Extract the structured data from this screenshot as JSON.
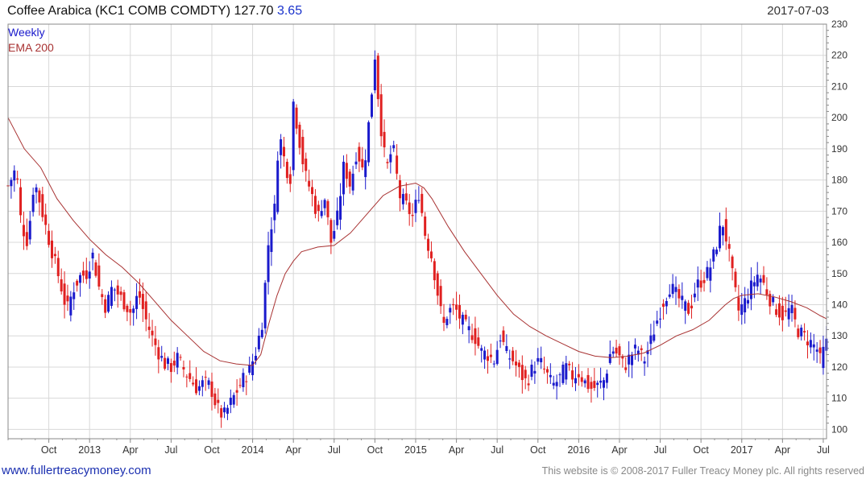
{
  "header": {
    "title": "Coffee Arabica  (KC1 COMB COMDTY) 127.70",
    "change": "3.65",
    "date": "2017-07-03"
  },
  "legend": {
    "weekly": "Weekly",
    "ema": "EMA 200"
  },
  "footer": {
    "site": "www.fullertreacymoney.com",
    "copyright": "This website is © 2008-2017 Fuller Treacy Money plc. All rights reserved"
  },
  "colors": {
    "up": "#1a1acc",
    "down": "#e02020",
    "ema": "#a83232",
    "grid": "#d8d8d8"
  },
  "chart_data": {
    "type": "candlestick",
    "y_ticks": [
      100,
      110,
      120,
      130,
      140,
      150,
      160,
      170,
      180,
      190,
      200,
      210,
      220,
      230
    ],
    "ylim": [
      97,
      230
    ],
    "x_ticks": [
      {
        "label": "Oct",
        "t": 2012.75
      },
      {
        "label": "2013",
        "t": 2013.0
      },
      {
        "label": "Apr",
        "t": 2013.25
      },
      {
        "label": "Jul",
        "t": 2013.5
      },
      {
        "label": "Oct",
        "t": 2013.75
      },
      {
        "label": "2014",
        "t": 2014.0
      },
      {
        "label": "Apr",
        "t": 2014.25
      },
      {
        "label": "Jul",
        "t": 2014.5
      },
      {
        "label": "Oct",
        "t": 2014.75
      },
      {
        "label": "2015",
        "t": 2015.0
      },
      {
        "label": "Apr",
        "t": 2015.25
      },
      {
        "label": "Jul",
        "t": 2015.5
      },
      {
        "label": "Oct",
        "t": 2015.75
      },
      {
        "label": "2016",
        "t": 2016.0
      },
      {
        "label": "Apr",
        "t": 2016.25
      },
      {
        "label": "Jul",
        "t": 2016.5
      },
      {
        "label": "Oct",
        "t": 2016.75
      },
      {
        "label": "2017",
        "t": 2017.0
      },
      {
        "label": "Apr",
        "t": 2017.25
      },
      {
        "label": "Jul",
        "t": 2017.5
      }
    ],
    "xlim": [
      2012.5,
      2017.52
    ],
    "close_path": [
      [
        2012.5,
        178
      ],
      [
        2012.55,
        184
      ],
      [
        2012.58,
        166
      ],
      [
        2012.62,
        160
      ],
      [
        2012.66,
        180
      ],
      [
        2012.7,
        172
      ],
      [
        2012.74,
        163
      ],
      [
        2012.78,
        155
      ],
      [
        2012.82,
        147
      ],
      [
        2012.86,
        138
      ],
      [
        2012.9,
        145
      ],
      [
        2012.94,
        149
      ],
      [
        2012.98,
        150
      ],
      [
        2013.02,
        156
      ],
      [
        2013.06,
        145
      ],
      [
        2013.1,
        139
      ],
      [
        2013.14,
        146
      ],
      [
        2013.18,
        143
      ],
      [
        2013.22,
        140
      ],
      [
        2013.26,
        137
      ],
      [
        2013.3,
        144
      ],
      [
        2013.34,
        136
      ],
      [
        2013.38,
        130
      ],
      [
        2013.42,
        125
      ],
      [
        2013.46,
        121
      ],
      [
        2013.5,
        120
      ],
      [
        2013.54,
        123
      ],
      [
        2013.58,
        119
      ],
      [
        2013.62,
        116
      ],
      [
        2013.66,
        113
      ],
      [
        2013.7,
        115
      ],
      [
        2013.74,
        114
      ],
      [
        2013.78,
        107
      ],
      [
        2013.82,
        104
      ],
      [
        2013.86,
        108
      ],
      [
        2013.9,
        112
      ],
      [
        2013.94,
        116
      ],
      [
        2013.98,
        119
      ],
      [
        2014.02,
        125
      ],
      [
        2014.06,
        135
      ],
      [
        2014.1,
        162
      ],
      [
        2014.14,
        172
      ],
      [
        2014.16,
        196
      ],
      [
        2014.2,
        185
      ],
      [
        2014.23,
        180
      ],
      [
        2014.25,
        205
      ],
      [
        2014.28,
        195
      ],
      [
        2014.32,
        182
      ],
      [
        2014.36,
        176
      ],
      [
        2014.4,
        168
      ],
      [
        2014.44,
        175
      ],
      [
        2014.48,
        160
      ],
      [
        2014.52,
        168
      ],
      [
        2014.56,
        185
      ],
      [
        2014.6,
        178
      ],
      [
        2014.64,
        190
      ],
      [
        2014.68,
        182
      ],
      [
        2014.72,
        202
      ],
      [
        2014.75,
        220
      ],
      [
        2014.78,
        200
      ],
      [
        2014.82,
        183
      ],
      [
        2014.86,
        191
      ],
      [
        2014.9,
        175
      ],
      [
        2014.94,
        172
      ],
      [
        2014.98,
        168
      ],
      [
        2015.02,
        176
      ],
      [
        2015.06,
        162
      ],
      [
        2015.1,
        155
      ],
      [
        2015.14,
        142
      ],
      [
        2015.17,
        133
      ],
      [
        2015.2,
        138
      ],
      [
        2015.24,
        139
      ],
      [
        2015.28,
        135
      ],
      [
        2015.32,
        132
      ],
      [
        2015.36,
        130
      ],
      [
        2015.4,
        125
      ],
      [
        2015.44,
        124
      ],
      [
        2015.48,
        122
      ],
      [
        2015.52,
        130
      ],
      [
        2015.56,
        124
      ],
      [
        2015.6,
        122
      ],
      [
        2015.64,
        118
      ],
      [
        2015.68,
        115
      ],
      [
        2015.72,
        120
      ],
      [
        2015.76,
        122
      ],
      [
        2015.8,
        118
      ],
      [
        2015.84,
        114
      ],
      [
        2015.88,
        116
      ],
      [
        2015.92,
        120
      ],
      [
        2015.96,
        117
      ],
      [
        2016.0,
        118
      ],
      [
        2016.04,
        115
      ],
      [
        2016.08,
        113
      ],
      [
        2016.12,
        114
      ],
      [
        2016.16,
        116
      ],
      [
        2016.2,
        126
      ],
      [
        2016.24,
        124
      ],
      [
        2016.28,
        120
      ],
      [
        2016.32,
        124
      ],
      [
        2016.36,
        126
      ],
      [
        2016.4,
        122
      ],
      [
        2016.44,
        128
      ],
      [
        2016.48,
        135
      ],
      [
        2016.52,
        141
      ],
      [
        2016.56,
        146
      ],
      [
        2016.6,
        143
      ],
      [
        2016.64,
        140
      ],
      [
        2016.68,
        138
      ],
      [
        2016.72,
        146
      ],
      [
        2016.76,
        148
      ],
      [
        2016.8,
        151
      ],
      [
        2016.84,
        158
      ],
      [
        2016.88,
        167
      ],
      [
        2016.91,
        160
      ],
      [
        2016.94,
        150
      ],
      [
        2016.98,
        138
      ],
      [
        2017.02,
        141
      ],
      [
        2017.06,
        146
      ],
      [
        2017.1,
        150
      ],
      [
        2017.14,
        146
      ],
      [
        2017.18,
        141
      ],
      [
        2017.22,
        138
      ],
      [
        2017.26,
        136
      ],
      [
        2017.3,
        139
      ],
      [
        2017.34,
        132
      ],
      [
        2017.38,
        130
      ],
      [
        2017.42,
        128
      ],
      [
        2017.46,
        126
      ],
      [
        2017.48,
        122
      ],
      [
        2017.5,
        125
      ],
      [
        2017.52,
        127.7
      ]
    ],
    "ema_200": [
      [
        2012.5,
        200
      ],
      [
        2012.6,
        190
      ],
      [
        2012.7,
        184
      ],
      [
        2012.8,
        174
      ],
      [
        2012.9,
        167
      ],
      [
        2013.0,
        161
      ],
      [
        2013.1,
        156
      ],
      [
        2013.2,
        152
      ],
      [
        2013.3,
        147
      ],
      [
        2013.4,
        141
      ],
      [
        2013.5,
        135
      ],
      [
        2013.6,
        130
      ],
      [
        2013.7,
        125
      ],
      [
        2013.8,
        122
      ],
      [
        2013.9,
        121
      ],
      [
        2014.0,
        120.5
      ],
      [
        2014.05,
        124
      ],
      [
        2014.1,
        134
      ],
      [
        2014.15,
        143
      ],
      [
        2014.2,
        150
      ],
      [
        2014.25,
        154
      ],
      [
        2014.3,
        157
      ],
      [
        2014.4,
        158.5
      ],
      [
        2014.5,
        159
      ],
      [
        2014.6,
        163
      ],
      [
        2014.7,
        169
      ],
      [
        2014.8,
        175
      ],
      [
        2014.9,
        178
      ],
      [
        2015.0,
        179
      ],
      [
        2015.05,
        177.5
      ],
      [
        2015.1,
        174
      ],
      [
        2015.2,
        165
      ],
      [
        2015.3,
        157
      ],
      [
        2015.4,
        150
      ],
      [
        2015.5,
        143
      ],
      [
        2015.6,
        137
      ],
      [
        2015.7,
        133
      ],
      [
        2015.8,
        130
      ],
      [
        2015.9,
        127.5
      ],
      [
        2016.0,
        125
      ],
      [
        2016.1,
        123.5
      ],
      [
        2016.2,
        123
      ],
      [
        2016.3,
        123.5
      ],
      [
        2016.4,
        124.5
      ],
      [
        2016.5,
        127
      ],
      [
        2016.6,
        130
      ],
      [
        2016.7,
        132
      ],
      [
        2016.8,
        135
      ],
      [
        2016.9,
        140
      ],
      [
        2016.95,
        142
      ],
      [
        2017.0,
        143
      ],
      [
        2017.1,
        143.5
      ],
      [
        2017.2,
        142.5
      ],
      [
        2017.3,
        141
      ],
      [
        2017.4,
        139
      ],
      [
        2017.48,
        136.5
      ],
      [
        2017.52,
        135.5
      ]
    ]
  }
}
